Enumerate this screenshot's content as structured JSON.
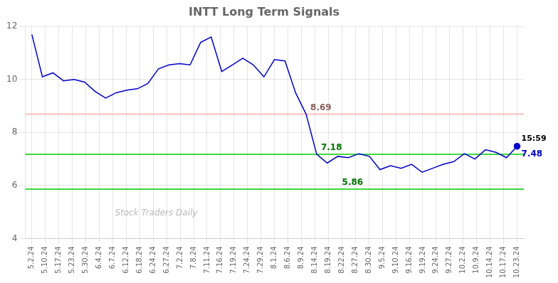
{
  "chart_data": {
    "type": "line",
    "title": "INTT Long Term Signals",
    "watermark": "Stock Traders Daily",
    "color": "#0000cc",
    "grid": true,
    "x": [
      0,
      0.782609,
      1.565217,
      2.347826,
      3.130435,
      3.913043,
      4.695652,
      5.478261,
      6.26087,
      7.043478,
      7.826087,
      8.608696,
      9.391304,
      10.173913,
      10.956522,
      11.73913,
      12.521739,
      13.304348,
      14.086957,
      14.869565,
      15.652174,
      16.434783,
      17.217391,
      18,
      18.782609,
      19.565217,
      20.347826,
      21.130435,
      21.913043,
      22.695652,
      23.478261,
      24.26087,
      25.043478,
      25.826087,
      26.608696,
      27.391304,
      28.173913,
      28.956522,
      29.73913,
      30.521739,
      31.304348,
      32.086957,
      32.869565,
      33.652174,
      34.434783,
      35.217391,
      36
    ],
    "values": [
      11.7,
      10.1,
      10.25,
      9.95,
      10.0,
      9.9,
      9.55,
      9.3,
      9.5,
      9.6,
      9.65,
      9.85,
      10.4,
      10.55,
      10.6,
      10.55,
      11.4,
      11.6,
      10.3,
      10.55,
      10.8,
      10.55,
      10.1,
      10.75,
      10.7,
      9.5,
      8.69,
      7.18,
      6.85,
      7.1,
      7.05,
      7.2,
      7.1,
      6.6,
      6.75,
      6.65,
      6.8,
      6.5,
      6.65,
      6.8,
      6.9,
      7.2,
      7.0,
      7.35,
      7.25,
      7.05,
      7.48
    ],
    "xlim": [
      -0.5,
      36.5
    ],
    "xticks": [
      {
        "value": 0,
        "label": "5.2.24"
      },
      {
        "value": 1,
        "label": "5.10.24"
      },
      {
        "value": 2,
        "label": "5.17.24"
      },
      {
        "value": 3,
        "label": "5.23.24"
      },
      {
        "value": 4,
        "label": "5.30.24"
      },
      {
        "value": 5,
        "label": "6.4.24"
      },
      {
        "value": 6,
        "label": "6.7.24"
      },
      {
        "value": 7,
        "label": "6.12.24"
      },
      {
        "value": 8,
        "label": "6.18.24"
      },
      {
        "value": 9,
        "label": "6.24.24"
      },
      {
        "value": 10,
        "label": "6.27.24"
      },
      {
        "value": 11,
        "label": "7.2.24"
      },
      {
        "value": 12,
        "label": "7.8.24"
      },
      {
        "value": 13,
        "label": "7.11.24"
      },
      {
        "value": 14,
        "label": "7.16.24"
      },
      {
        "value": 15,
        "label": "7.19.24"
      },
      {
        "value": 16,
        "label": "7.24.24"
      },
      {
        "value": 17,
        "label": "7.29.24"
      },
      {
        "value": 18,
        "label": "8.1.24"
      },
      {
        "value": 19,
        "label": "8.6.24"
      },
      {
        "value": 20,
        "label": "8.9.24"
      },
      {
        "value": 21,
        "label": "8.14.24"
      },
      {
        "value": 22,
        "label": "8.19.24"
      },
      {
        "value": 23,
        "label": "8.22.24"
      },
      {
        "value": 24,
        "label": "8.27.24"
      },
      {
        "value": 25,
        "label": "8.30.24"
      },
      {
        "value": 26,
        "label": "9.5.24"
      },
      {
        "value": 27,
        "label": "9.10.24"
      },
      {
        "value": 28,
        "label": "9.16.24"
      },
      {
        "value": 29,
        "label": "9.19.24"
      },
      {
        "value": 30,
        "label": "9.24.24"
      },
      {
        "value": 31,
        "label": "9.27.24"
      },
      {
        "value": 32,
        "label": "10.2.24"
      },
      {
        "value": 33,
        "label": "10.9.24"
      },
      {
        "value": 34,
        "label": "10.14.24"
      },
      {
        "value": 35,
        "label": "10.17.24"
      },
      {
        "value": 36,
        "label": "10.23.24"
      }
    ],
    "ylim": [
      4,
      12
    ],
    "yticks": [
      4,
      6,
      8,
      10,
      12
    ],
    "reference_lines": [
      {
        "value": 8.69,
        "label": "8.69",
        "color": "#ffaaaa",
        "x": 20.347826
      },
      {
        "value": 7.18,
        "label": "7.18",
        "color": "#00cc00",
        "x": 21.130435
      },
      {
        "value": 5.86,
        "label": "5.86",
        "color": "#00cc00",
        "x": 22.695652
      }
    ],
    "last_label": "15:59",
    "last_value_label": "7.48"
  }
}
